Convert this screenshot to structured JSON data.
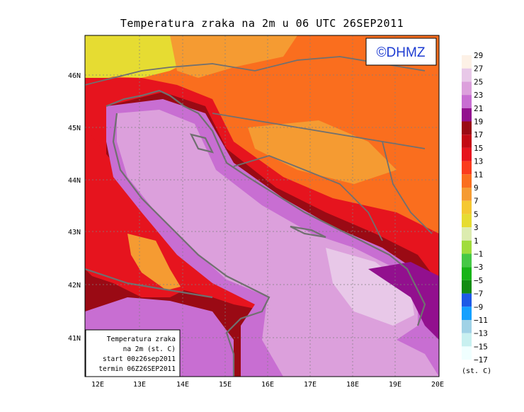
{
  "title": "Temperatura zraka na 2m u 06 UTC 26SEP2011",
  "logo": "©DHMZ",
  "info_box": {
    "line1": "Temperatura zraka",
    "line2": "na 2m (st. C)",
    "line3": "start 00z26sep2011",
    "line4": "termin 06Z26SEP2011"
  },
  "lat_labels": [
    "46N",
    "45N",
    "44N",
    "43N",
    "42N",
    "41N"
  ],
  "lon_labels": [
    "12E",
    "13E",
    "14E",
    "15E",
    "16E",
    "17E",
    "18E",
    "19E",
    "20E"
  ],
  "legend": {
    "unit": "(st. C)",
    "ticks": [
      "29",
      "27",
      "25",
      "23",
      "21",
      "19",
      "17",
      "15",
      "13",
      "11",
      "9",
      "7",
      "5",
      "3",
      "1",
      "−1",
      "−3",
      "−5",
      "−7",
      "−9",
      "−11",
      "−13",
      "−15",
      "−17"
    ],
    "colors": [
      "#fdf1e6",
      "#e8c8e8",
      "#dca0dc",
      "#c86ed2",
      "#92108e",
      "#9a0a14",
      "#c30a14",
      "#e6141e",
      "#fa3c1e",
      "#fa6e1e",
      "#f59b32",
      "#f5c832",
      "#e6dc32",
      "#dcecb0",
      "#a0dc3c",
      "#46c846",
      "#18b418",
      "#148c14",
      "#1e5ae6",
      "#14a0ff",
      "#a0d2e6",
      "#c8f0f0",
      "#f0ffff"
    ]
  },
  "colors": {
    "sea": "#dca0dc",
    "coast_dark": "#9a0a14",
    "inland": "#fa6e1e",
    "warm_land": "#e6141e",
    "border": "#707070"
  }
}
